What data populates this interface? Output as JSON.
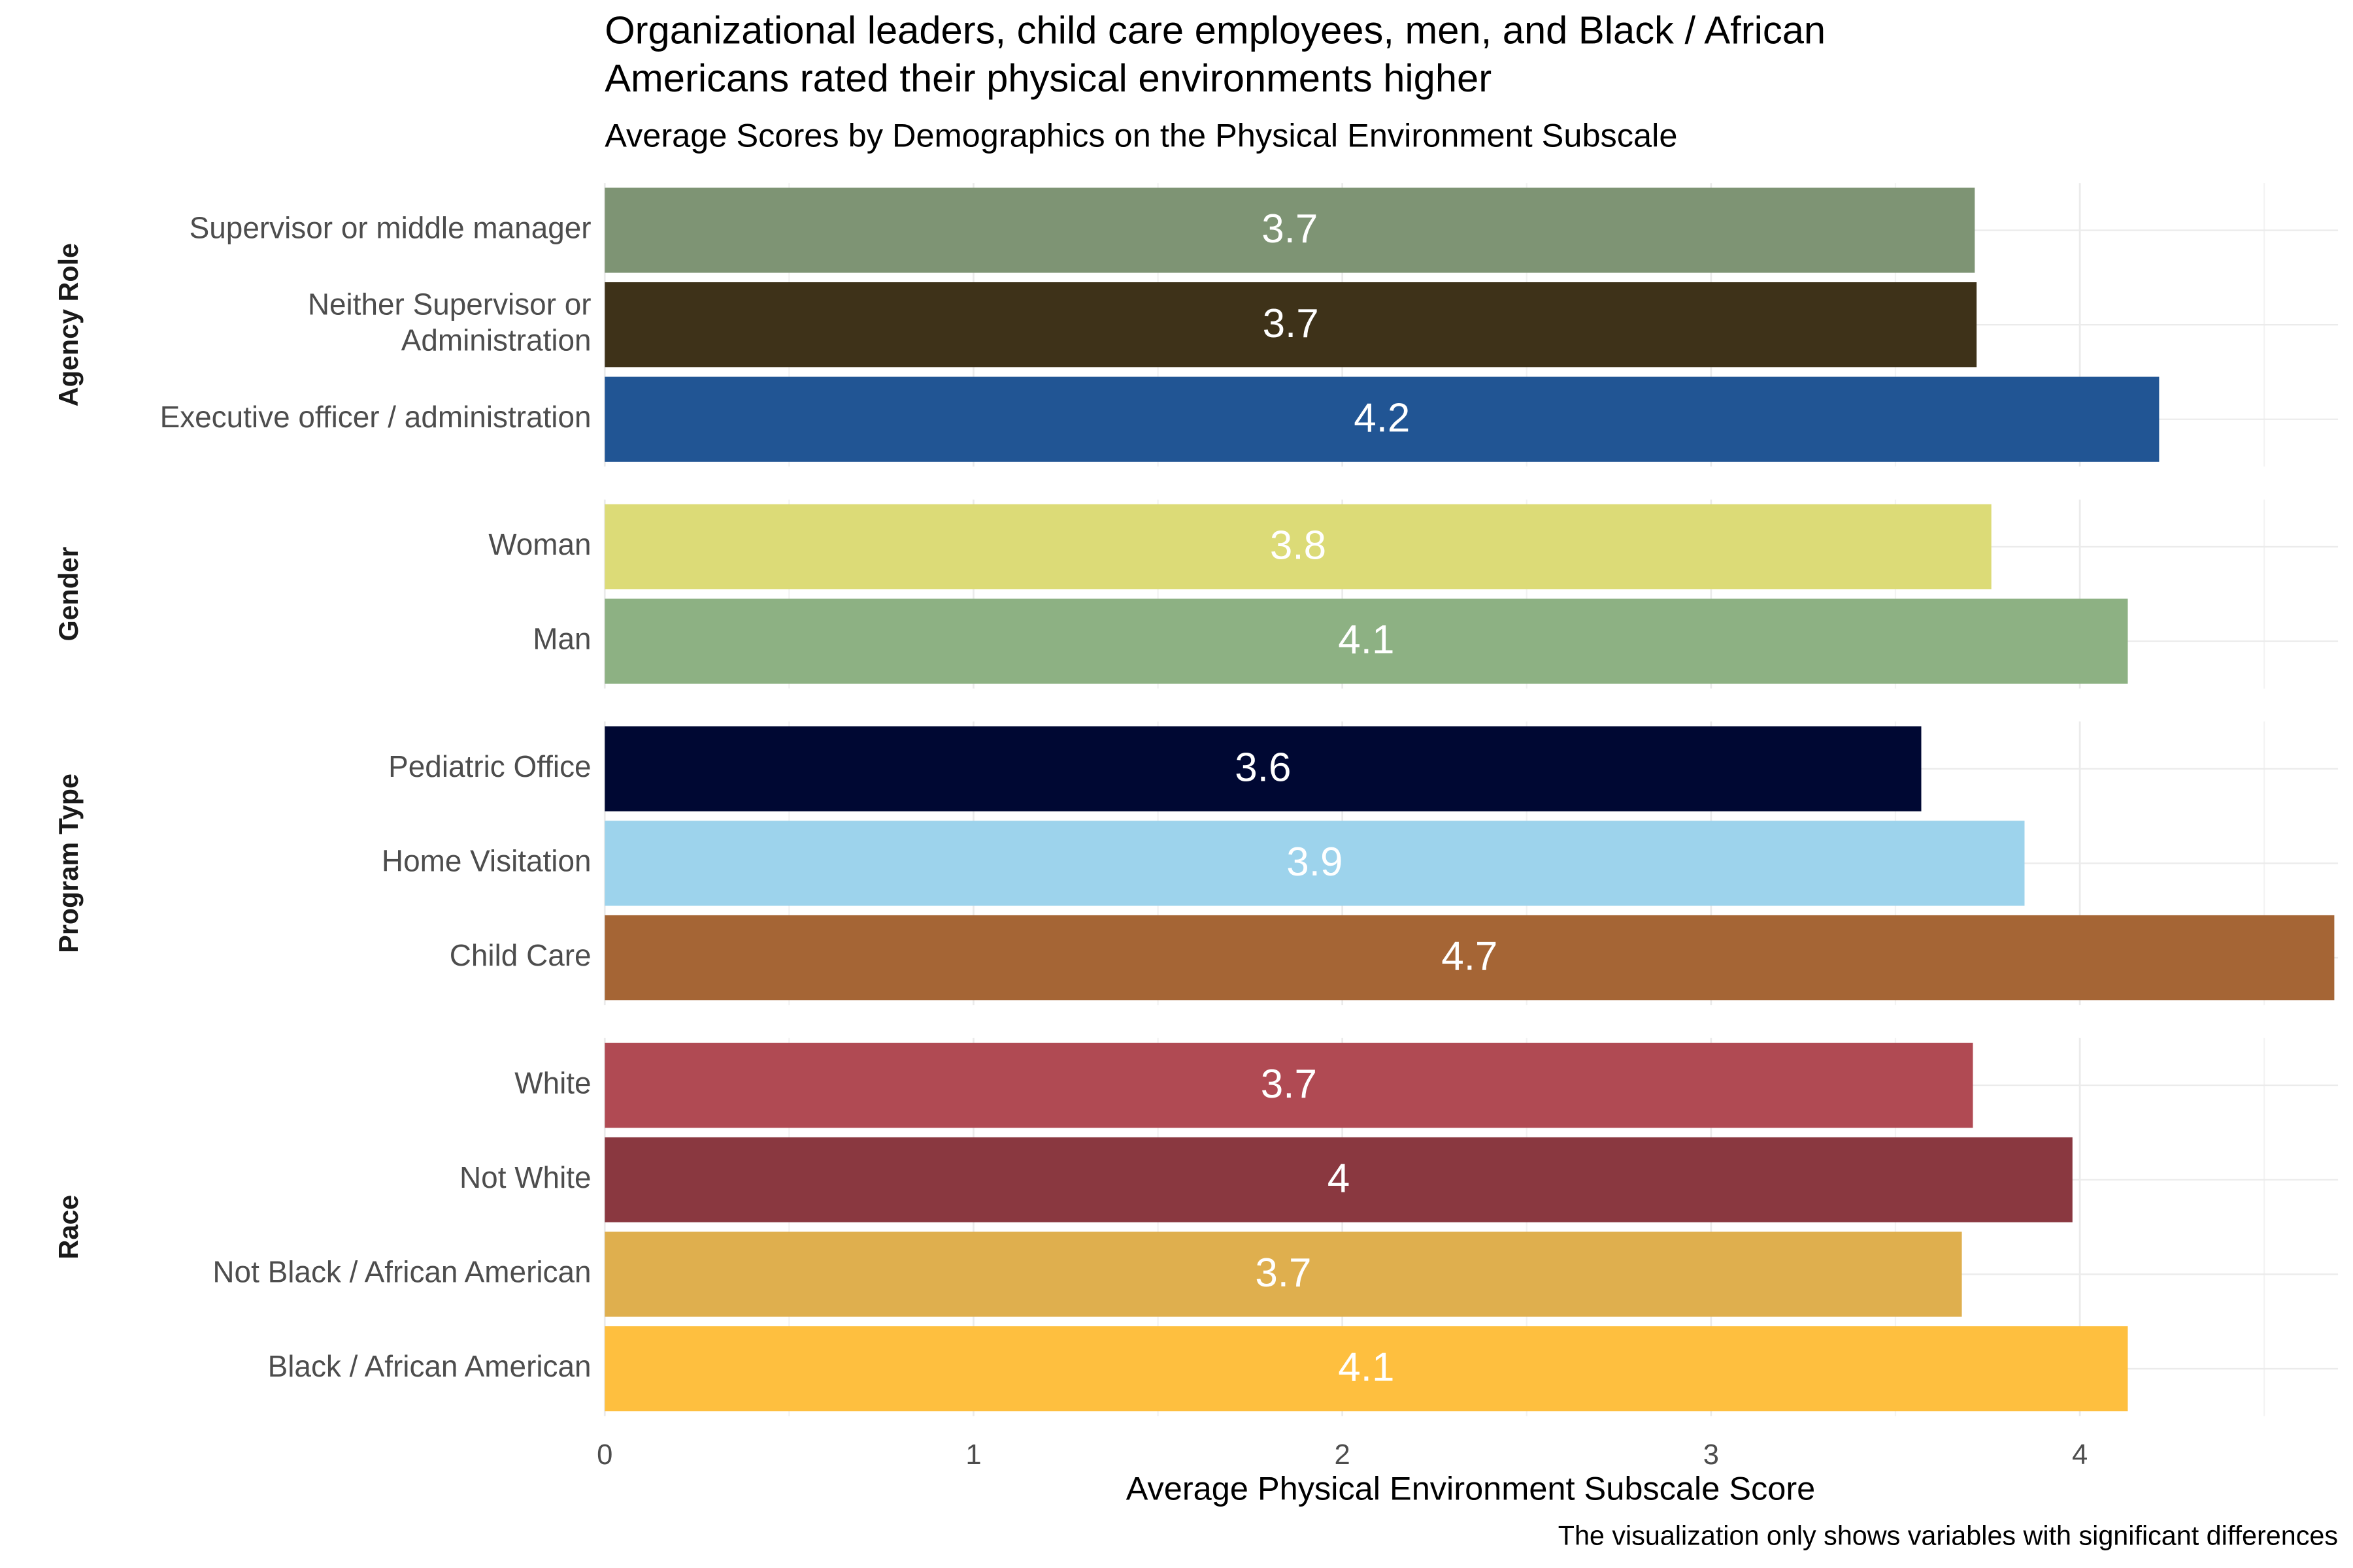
{
  "chart_data": {
    "type": "bar",
    "title": [
      "Organizational leaders, child care employees, men, and Black / African",
      "Americans rated their physical environments higher"
    ],
    "subtitle": "Average Scores by Demographics on the Physical Environment Subscale",
    "x_label": "Average Physical Environment Subscale Score",
    "caption": "The visualization only shows variables with significant differences",
    "xlim": [
      0,
      4.7
    ],
    "xticks": [
      0,
      1,
      2,
      3,
      4
    ],
    "minor_xticks": [
      0.5,
      1.5,
      2.5,
      3.5,
      4.5
    ],
    "grid": true,
    "facets": [
      {
        "name": "Agency Role",
        "categories": [
          "Supervisor or middle manager",
          "Neither Supervisor or\nAdministration",
          "Executive officer / administration"
        ],
        "values": [
          3.715,
          3.72,
          4.215
        ],
        "value_labels": [
          "3.7",
          "3.7",
          "4.2"
        ],
        "colors": [
          "#7e9474",
          "#3e3219",
          "#215594"
        ]
      },
      {
        "name": "Gender",
        "categories": [
          "Woman",
          "Man"
        ],
        "values": [
          3.76,
          4.13
        ],
        "value_labels": [
          "3.8",
          "4.1"
        ],
        "colors": [
          "#dcdb77",
          "#8db183"
        ]
      },
      {
        "name": "Program Type",
        "categories": [
          "Pediatric Office",
          "Home Visitation",
          "Child Care"
        ],
        "values": [
          3.57,
          3.85,
          4.69
        ],
        "value_labels": [
          "3.6",
          "3.9",
          "4.7"
        ],
        "colors": [
          "#000833",
          "#9dd3ec",
          "#a56535"
        ]
      },
      {
        "name": "Race",
        "categories": [
          "White",
          "Not White",
          "Not Black / African American",
          "Black / African American"
        ],
        "values": [
          3.71,
          3.98,
          3.68,
          4.13
        ],
        "value_labels": [
          "3.7",
          "4",
          "3.7",
          "4.1"
        ],
        "colors": [
          "#b04a53",
          "#8a3840",
          "#dfaf4e",
          "#febf3f"
        ]
      }
    ]
  }
}
